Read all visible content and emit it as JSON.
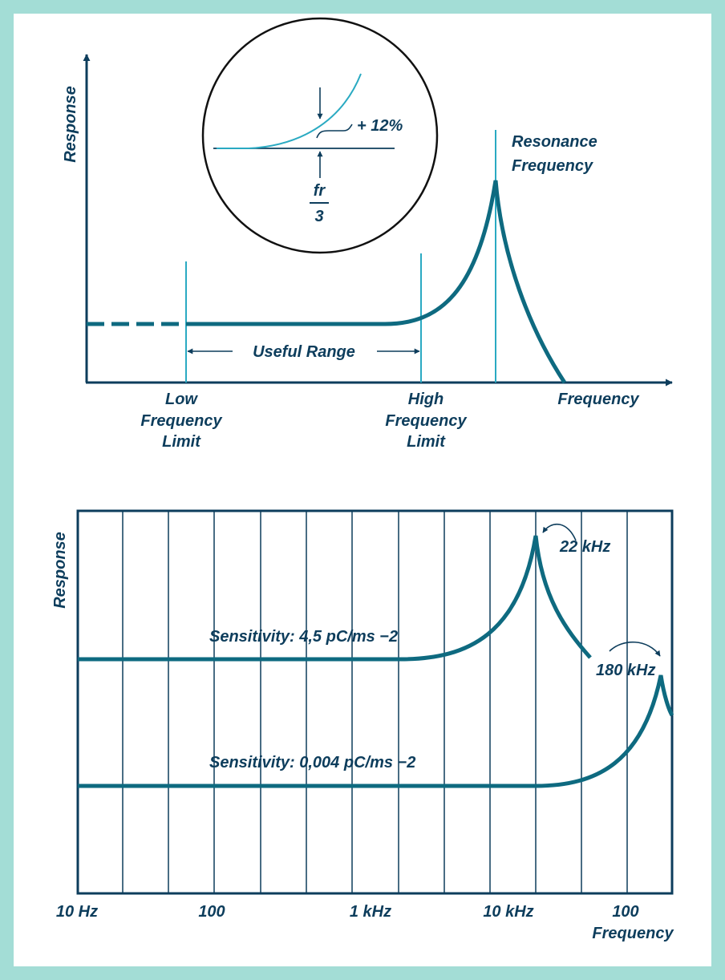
{
  "colors": {
    "frame": "#a3ddd6",
    "navy": "#0d3d5c",
    "teal": "#0e6a80",
    "light_teal": "#2aaac2"
  },
  "top_diagram": {
    "y_axis_label": "Response",
    "x_axis_label": "Frequency",
    "resonance_label": [
      "Resonance",
      "Frequency"
    ],
    "low_limit_label": [
      "Low",
      "Frequency",
      "Limit"
    ],
    "high_limit_label": [
      "High",
      "Frequency",
      "Limit"
    ],
    "useful_range_label": "Useful Range",
    "inset": {
      "deviation_label": "+ 12%",
      "fraction_numerator": "fr",
      "fraction_denominator": "3"
    }
  },
  "bottom_chart": {
    "y_axis_label": "Response",
    "x_axis_label": "Frequency",
    "tick_labels": [
      "10 Hz",
      "100",
      "1 kHz",
      "10 kHz",
      "100"
    ],
    "series": [
      {
        "label": "Sensitivity: 4,5 pC/ms −2",
        "resonance_label": "22 kHz"
      },
      {
        "label": "Sensitivity: 0,004 pC/ms −2",
        "resonance_label": "180 kHz"
      }
    ]
  }
}
